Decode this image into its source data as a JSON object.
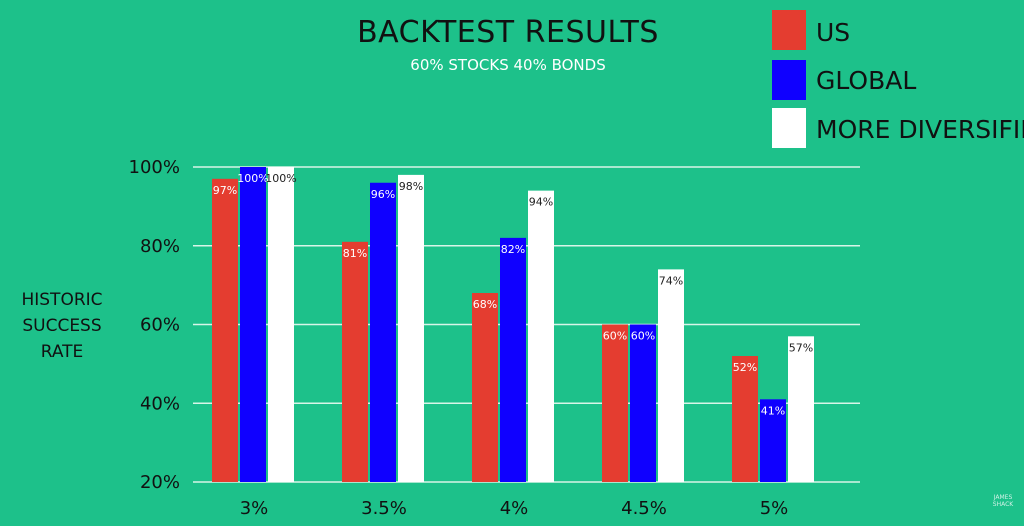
{
  "colors": {
    "background": "#1dc18a",
    "us": "#e43d30",
    "global": "#0f00ff",
    "diversified": "#ffffff",
    "grid": "#d8f5e8",
    "text": "#111111"
  },
  "watermark": [
    "JAMES",
    "SHACK"
  ],
  "chart_data": {
    "type": "bar",
    "title": "BACKTEST RESULTS",
    "subtitle": "60% STOCKS 40% BONDS",
    "ylabel": [
      "HISTORIC",
      "SUCCESS",
      "RATE"
    ],
    "xlabel": "",
    "categories": [
      "3%",
      "3.5%",
      "4%",
      "4.5%",
      "5%"
    ],
    "ylim": [
      20,
      100
    ],
    "yticks": [
      20,
      40,
      60,
      80,
      100
    ],
    "ytick_labels": [
      "20%",
      "40%",
      "60%",
      "80%",
      "100%"
    ],
    "grid": true,
    "legend_position": "top-right",
    "series": [
      {
        "name": "US",
        "color": "#e43d30",
        "values": [
          97,
          81,
          68,
          60,
          52
        ],
        "labels": [
          "97%",
          "81%",
          "68%",
          "60%",
          "52%"
        ]
      },
      {
        "name": "GLOBAL",
        "color": "#0f00ff",
        "values": [
          100,
          96,
          82,
          60,
          41
        ],
        "labels": [
          "100%",
          "96%",
          "82%",
          "60%",
          "41%"
        ]
      },
      {
        "name": "MORE DIVERSIFIED",
        "color": "#ffffff",
        "values": [
          100,
          98,
          94,
          74,
          57
        ],
        "labels": [
          "100%",
          "98%",
          "94%",
          "74%",
          "57%"
        ]
      }
    ]
  }
}
